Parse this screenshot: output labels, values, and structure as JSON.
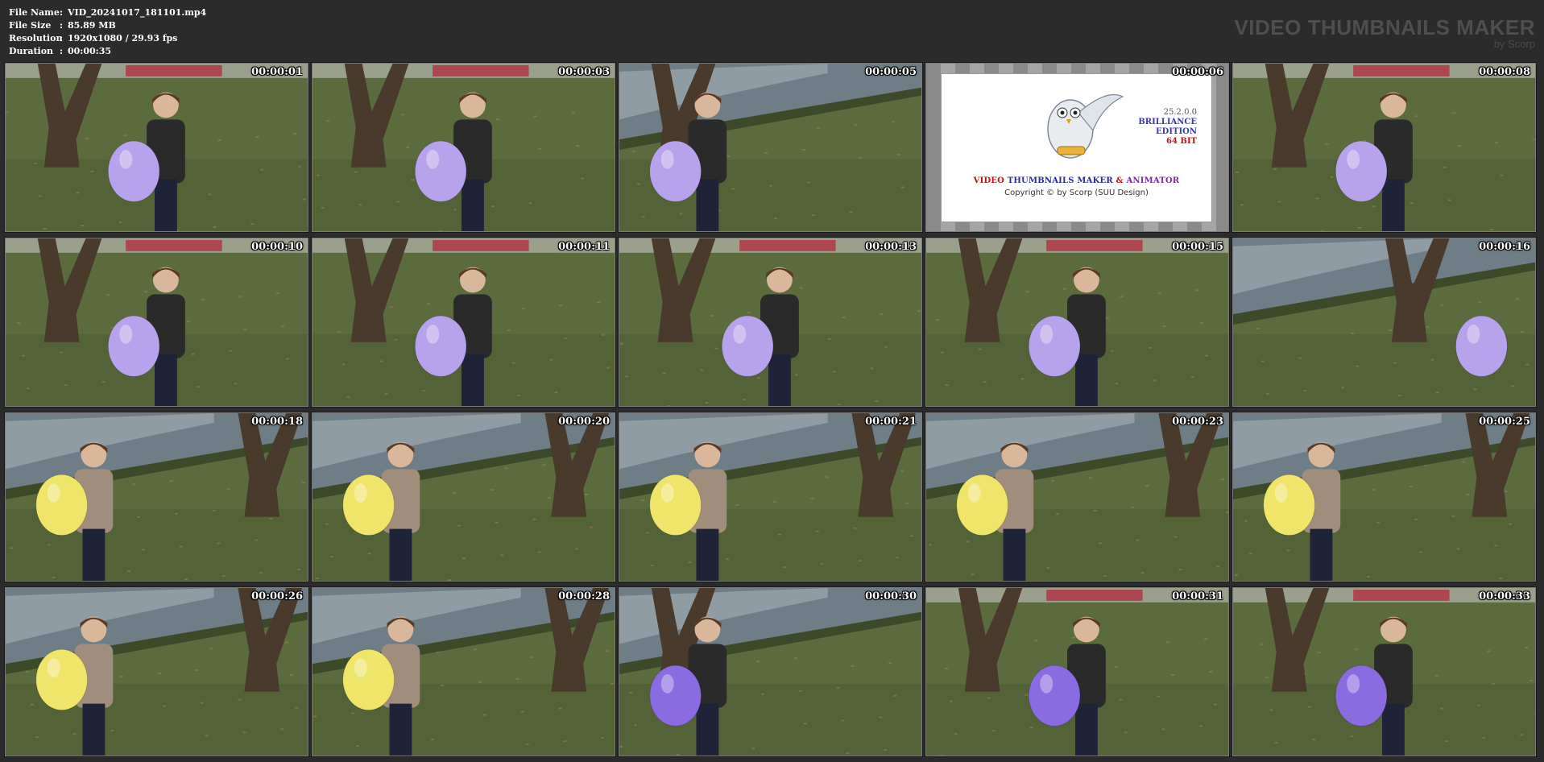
{
  "file_info": [
    {
      "label": "File Name",
      "value": "VID_20241017_181101.mp4"
    },
    {
      "label": "File Size",
      "value": "85.89 MB"
    },
    {
      "label": "Resolution",
      "value": "1920x1080 / 29.93 fps"
    },
    {
      "label": "Duration",
      "value": "00:00:35"
    }
  ],
  "brand": {
    "title": "VIDEO THUMBNAILS MAKER",
    "by": "by Scorp"
  },
  "splash": {
    "version": "25.2.0.0",
    "edition_1": "BRILLIANCE",
    "edition_2": "EDITION",
    "bits": "64 BIT",
    "title_a": "VIDEO",
    "title_b": "THUMBNAILS MAKER",
    "title_c": "&",
    "title_d": "ANIMATOR",
    "copyright": "Copyright © by Scorp (SUU Design)"
  },
  "thumbnails": [
    {
      "time": "00:00:01",
      "scene": "tree",
      "balloon": "lilac",
      "jacket": "plaid"
    },
    {
      "time": "00:00:03",
      "scene": "tree",
      "balloon": "lilac",
      "jacket": "plaid"
    },
    {
      "time": "00:00:05",
      "scene": "pond-tree",
      "balloon": "lilac",
      "jacket": "plaid"
    },
    {
      "time": "00:00:06",
      "scene": "splash",
      "balloon": "",
      "jacket": ""
    },
    {
      "time": "00:00:08",
      "scene": "tree",
      "balloon": "lilac",
      "jacket": "plaid"
    },
    {
      "time": "00:00:10",
      "scene": "tree",
      "balloon": "lilac",
      "jacket": "plaid"
    },
    {
      "time": "00:00:11",
      "scene": "tree",
      "balloon": "lilac",
      "jacket": "plaid"
    },
    {
      "time": "00:00:13",
      "scene": "tree",
      "balloon": "lilac",
      "jacket": "plaid"
    },
    {
      "time": "00:00:15",
      "scene": "tree",
      "balloon": "lilac",
      "jacket": "plaid"
    },
    {
      "time": "00:00:16",
      "scene": "pond-blur",
      "balloon": "lilac",
      "jacket": ""
    },
    {
      "time": "00:00:18",
      "scene": "pond",
      "balloon": "yellow",
      "jacket": "beige"
    },
    {
      "time": "00:00:20",
      "scene": "pond",
      "balloon": "yellow",
      "jacket": "beige"
    },
    {
      "time": "00:00:21",
      "scene": "pond",
      "balloon": "yellow",
      "jacket": "beige"
    },
    {
      "time": "00:00:23",
      "scene": "pond",
      "balloon": "yellow",
      "jacket": "beige"
    },
    {
      "time": "00:00:25",
      "scene": "pond",
      "balloon": "yellow",
      "jacket": "beige"
    },
    {
      "time": "00:00:26",
      "scene": "pond",
      "balloon": "yellow",
      "jacket": "beige"
    },
    {
      "time": "00:00:28",
      "scene": "pond",
      "balloon": "yellow",
      "jacket": "beige"
    },
    {
      "time": "00:00:30",
      "scene": "pond-tree",
      "balloon": "purple",
      "jacket": "plaid"
    },
    {
      "time": "00:00:31",
      "scene": "tree",
      "balloon": "purple",
      "jacket": "plaid"
    },
    {
      "time": "00:00:33",
      "scene": "tree",
      "balloon": "purple",
      "jacket": "plaid"
    }
  ],
  "colors": {
    "background": "#2b2b2b",
    "grass": "#5b6b3d",
    "balloon_lilac": "#b7a3ec",
    "balloon_yellow": "#efe56a",
    "balloon_purple": "#8a6be0",
    "jacket_plaid": "#2a2a2a",
    "jacket_beige": "#a18d7c"
  }
}
